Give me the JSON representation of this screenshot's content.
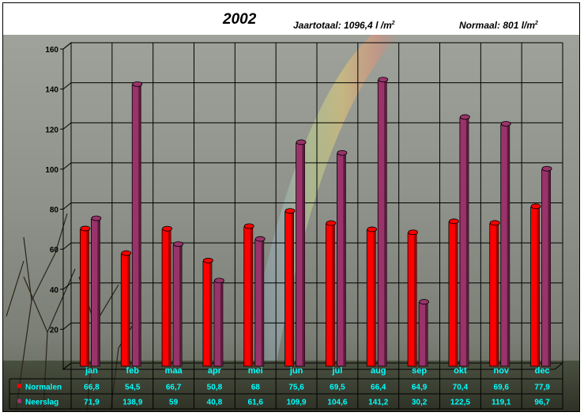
{
  "header": {
    "year": "2002",
    "total_label": "Jaartotaal: 1096,4 l /m",
    "normal_label": "Normaal: 801 l/m",
    "unit_sup": "2"
  },
  "colors": {
    "normalen": "#ff0000",
    "neerslag": "#99336a",
    "table_text": "#00ffff"
  },
  "chart_data": {
    "type": "bar",
    "title": "2002",
    "categories": [
      "jan",
      "feb",
      "maa",
      "apr",
      "mei",
      "jun",
      "jul",
      "aug",
      "sep",
      "okt",
      "nov",
      "dec"
    ],
    "series": [
      {
        "name": "Normalen",
        "values": [
          66.8,
          54.5,
          66.7,
          50.8,
          68,
          75.6,
          69.5,
          66.4,
          64.9,
          70.4,
          69.6,
          77.9
        ],
        "labels": [
          "66,8",
          "54,5",
          "66,7",
          "50,8",
          "68",
          "75,6",
          "69,5",
          "66,4",
          "64,9",
          "70,4",
          "69,6",
          "77,9"
        ]
      },
      {
        "name": "Neerslag",
        "values": [
          71.9,
          138.9,
          59,
          40.8,
          61.6,
          109.9,
          104.6,
          141.2,
          30.2,
          122.5,
          119.1,
          96.7
        ],
        "labels": [
          "71,9",
          "138,9",
          "59",
          "40,8",
          "61,6",
          "109,9",
          "104,6",
          "141,2",
          "30,2",
          "122,5",
          "119,1",
          "96,7"
        ]
      }
    ],
    "ylim": [
      0,
      160
    ],
    "yticks": [
      20,
      40,
      60,
      80,
      100,
      120,
      140,
      160
    ],
    "ytick_labels": [
      "20",
      "40",
      "60",
      "80",
      "100",
      "120",
      "140",
      "160"
    ],
    "grid": true,
    "legend": "data table below chart",
    "xlabel": "",
    "ylabel": ""
  }
}
